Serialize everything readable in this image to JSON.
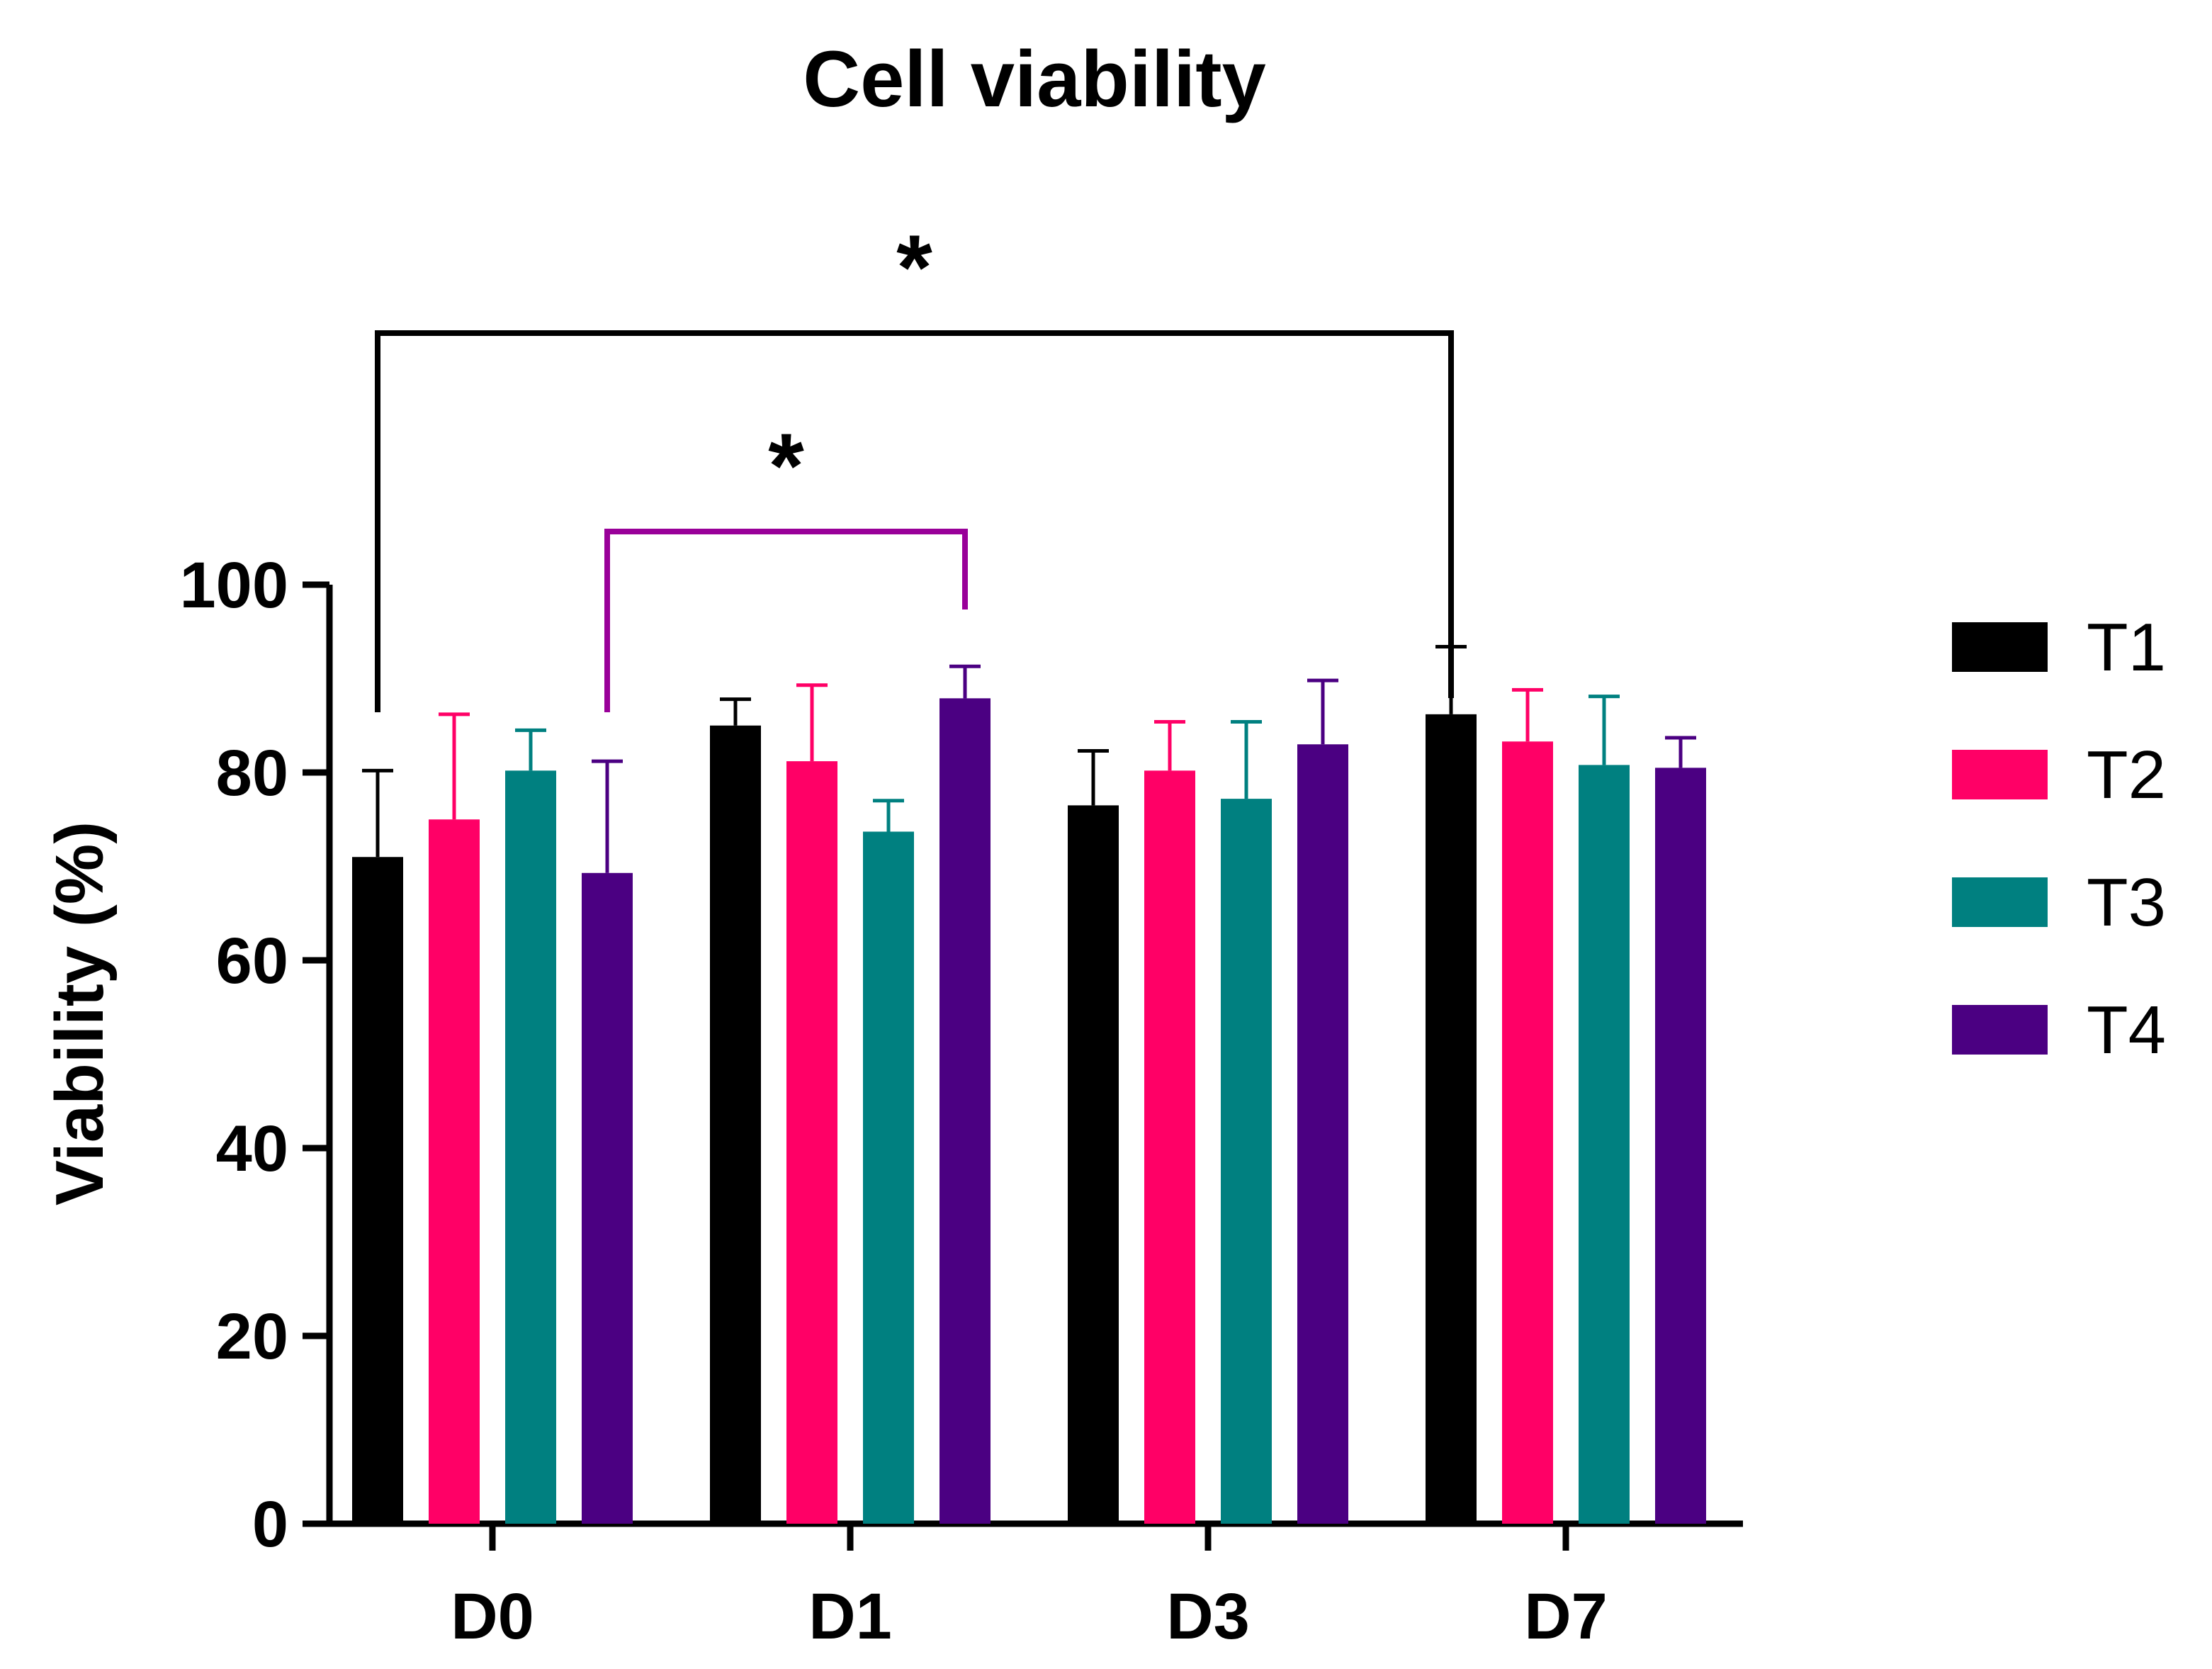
{
  "chart_data": {
    "type": "bar",
    "title": "Cell viability",
    "xlabel": "",
    "ylabel": "Viability (%)",
    "ylim": [
      0,
      100
    ],
    "yticks": [
      0,
      20,
      40,
      60,
      80,
      100
    ],
    "categories": [
      "D0",
      "D1",
      "D3",
      "D7"
    ],
    "series": [
      {
        "name": "T1",
        "color": "#000000",
        "values": [
          71,
          85,
          76.5,
          86.2
        ],
        "errors": [
          9.2,
          2.8,
          5.8,
          7.2
        ]
      },
      {
        "name": "T2",
        "color": "#ff0066",
        "values": [
          75,
          81.2,
          80.2,
          83.3
        ],
        "errors": [
          11.2,
          8.1,
          5.2,
          5.5
        ]
      },
      {
        "name": "T3",
        "color": "#008080",
        "values": [
          80.2,
          73.7,
          77.2,
          80.8
        ],
        "errors": [
          4.3,
          3.3,
          8.2,
          7.3
        ]
      },
      {
        "name": "T4",
        "color": "#4b0082",
        "values": [
          69.3,
          87.9,
          83,
          80.5
        ],
        "errors": [
          11.9,
          3.4,
          6.8,
          3.2
        ]
      }
    ],
    "grid": false,
    "legend": "right",
    "annotations": [
      {
        "label": "*",
        "color": "#000000",
        "from": {
          "category": "D0",
          "series": "T1"
        },
        "to": {
          "category": "D7",
          "series": "T1"
        }
      },
      {
        "label": "*",
        "color": "#990099",
        "from": {
          "category": "D0",
          "series": "T4"
        },
        "to": {
          "category": "D1",
          "series": "T4"
        }
      }
    ]
  }
}
